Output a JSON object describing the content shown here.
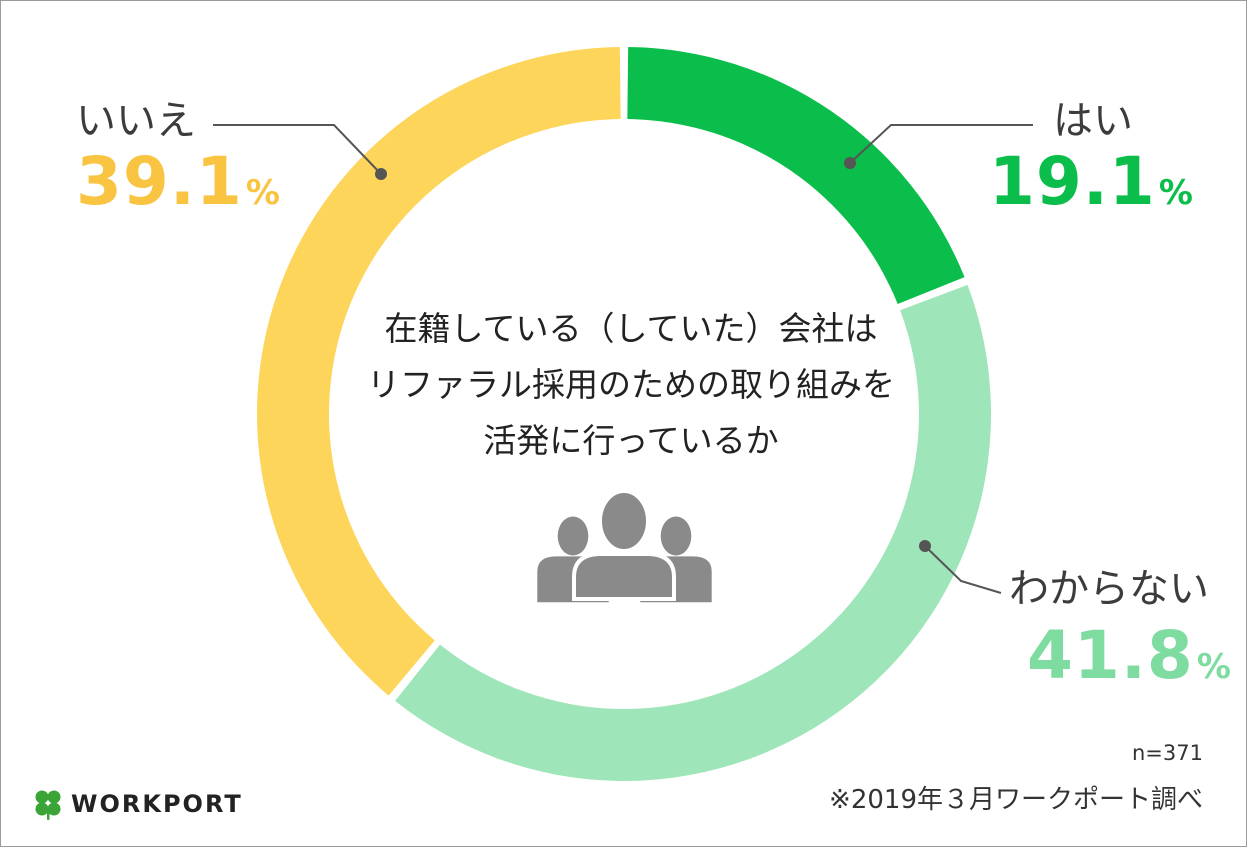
{
  "chart_data": {
    "type": "pie",
    "categories": [
      "はい",
      "わからない",
      "いいえ"
    ],
    "values": [
      19.1,
      41.8,
      39.1
    ],
    "unit": "%",
    "colors": [
      "#0bbd4a",
      "#9ee5b9",
      "#fdd55a"
    ],
    "label_colors": [
      "#0bbd4a",
      "#7edca0",
      "#f8c441"
    ],
    "title": "在籍している（していた）会社はリファラル採用のための取り組みを活発に行っているか"
  },
  "labels": [
    {
      "name": "はい",
      "pct": "19.1",
      "unit": "%"
    },
    {
      "name": "わからない",
      "pct": "41.8",
      "unit": "%"
    },
    {
      "name": "いいえ",
      "pct": "39.1",
      "unit": "%"
    }
  ],
  "center": {
    "lines": [
      "在籍している（していた）会社は",
      "リファラル採用のための取り組みを",
      "活発に行っているか"
    ],
    "icon": "people-group-icon"
  },
  "footer": {
    "sample": "n=371",
    "source": "※2019年３月ワークポート調べ",
    "logo_text": "WORKPORT",
    "logo_icon": "clover-icon",
    "logo_color": "#3aa536"
  }
}
